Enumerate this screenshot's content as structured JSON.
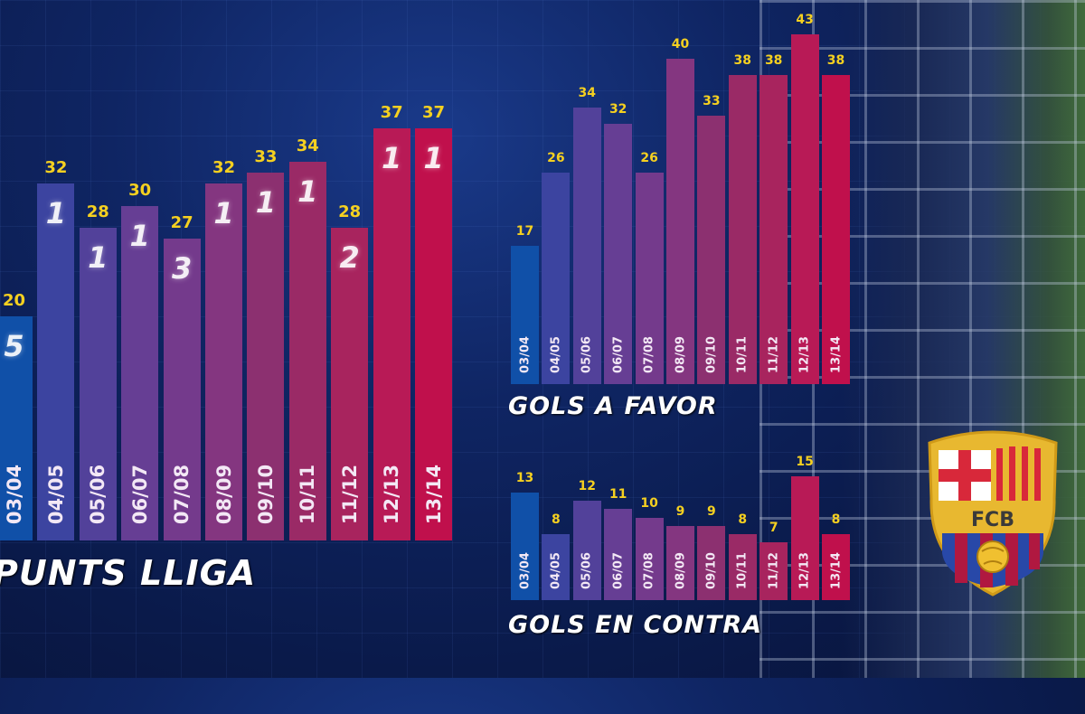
{
  "chart_data": [
    {
      "type": "bar",
      "title": "PUNTS LLIGA",
      "categories": [
        "03/04",
        "04/05",
        "05/06",
        "06/07",
        "07/08",
        "08/09",
        "09/10",
        "10/11",
        "11/12",
        "12/13",
        "13/14"
      ],
      "values": [
        20,
        32,
        28,
        30,
        27,
        32,
        33,
        34,
        28,
        37,
        37
      ],
      "rank_annotations": [
        "5",
        "1",
        "1",
        "1",
        "3",
        "1",
        "1",
        "1",
        "2",
        "1",
        "1"
      ],
      "xlabel": "",
      "ylabel": "",
      "grid": false,
      "legend": null
    },
    {
      "type": "bar",
      "title": "GOLS A FAVOR",
      "categories": [
        "03/04",
        "04/05",
        "05/06",
        "06/07",
        "07/08",
        "08/09",
        "09/10",
        "10/11",
        "11/12",
        "12/13",
        "13/14"
      ],
      "values": [
        17,
        26,
        34,
        32,
        26,
        40,
        33,
        38,
        38,
        43,
        38
      ],
      "xlabel": "",
      "ylabel": "",
      "grid": false,
      "legend": null
    },
    {
      "type": "bar",
      "title": "GOLS EN CONTRA",
      "categories": [
        "03/04",
        "04/05",
        "05/06",
        "06/07",
        "07/08",
        "08/09",
        "09/10",
        "10/11",
        "11/12",
        "12/13",
        "13/14"
      ],
      "values": [
        13,
        8,
        12,
        11,
        10,
        9,
        9,
        8,
        7,
        15,
        8
      ],
      "xlabel": "",
      "ylabel": "",
      "grid": false,
      "legend": null
    }
  ],
  "bar_colors": [
    "#1050a8",
    "#3c44a0",
    "#52419a",
    "#663e94",
    "#743a8c",
    "#843680",
    "#8c3070",
    "#9a2a66",
    "#a8245e",
    "#b81a56",
    "#c0104c"
  ],
  "logo": {
    "text": "FCB"
  }
}
